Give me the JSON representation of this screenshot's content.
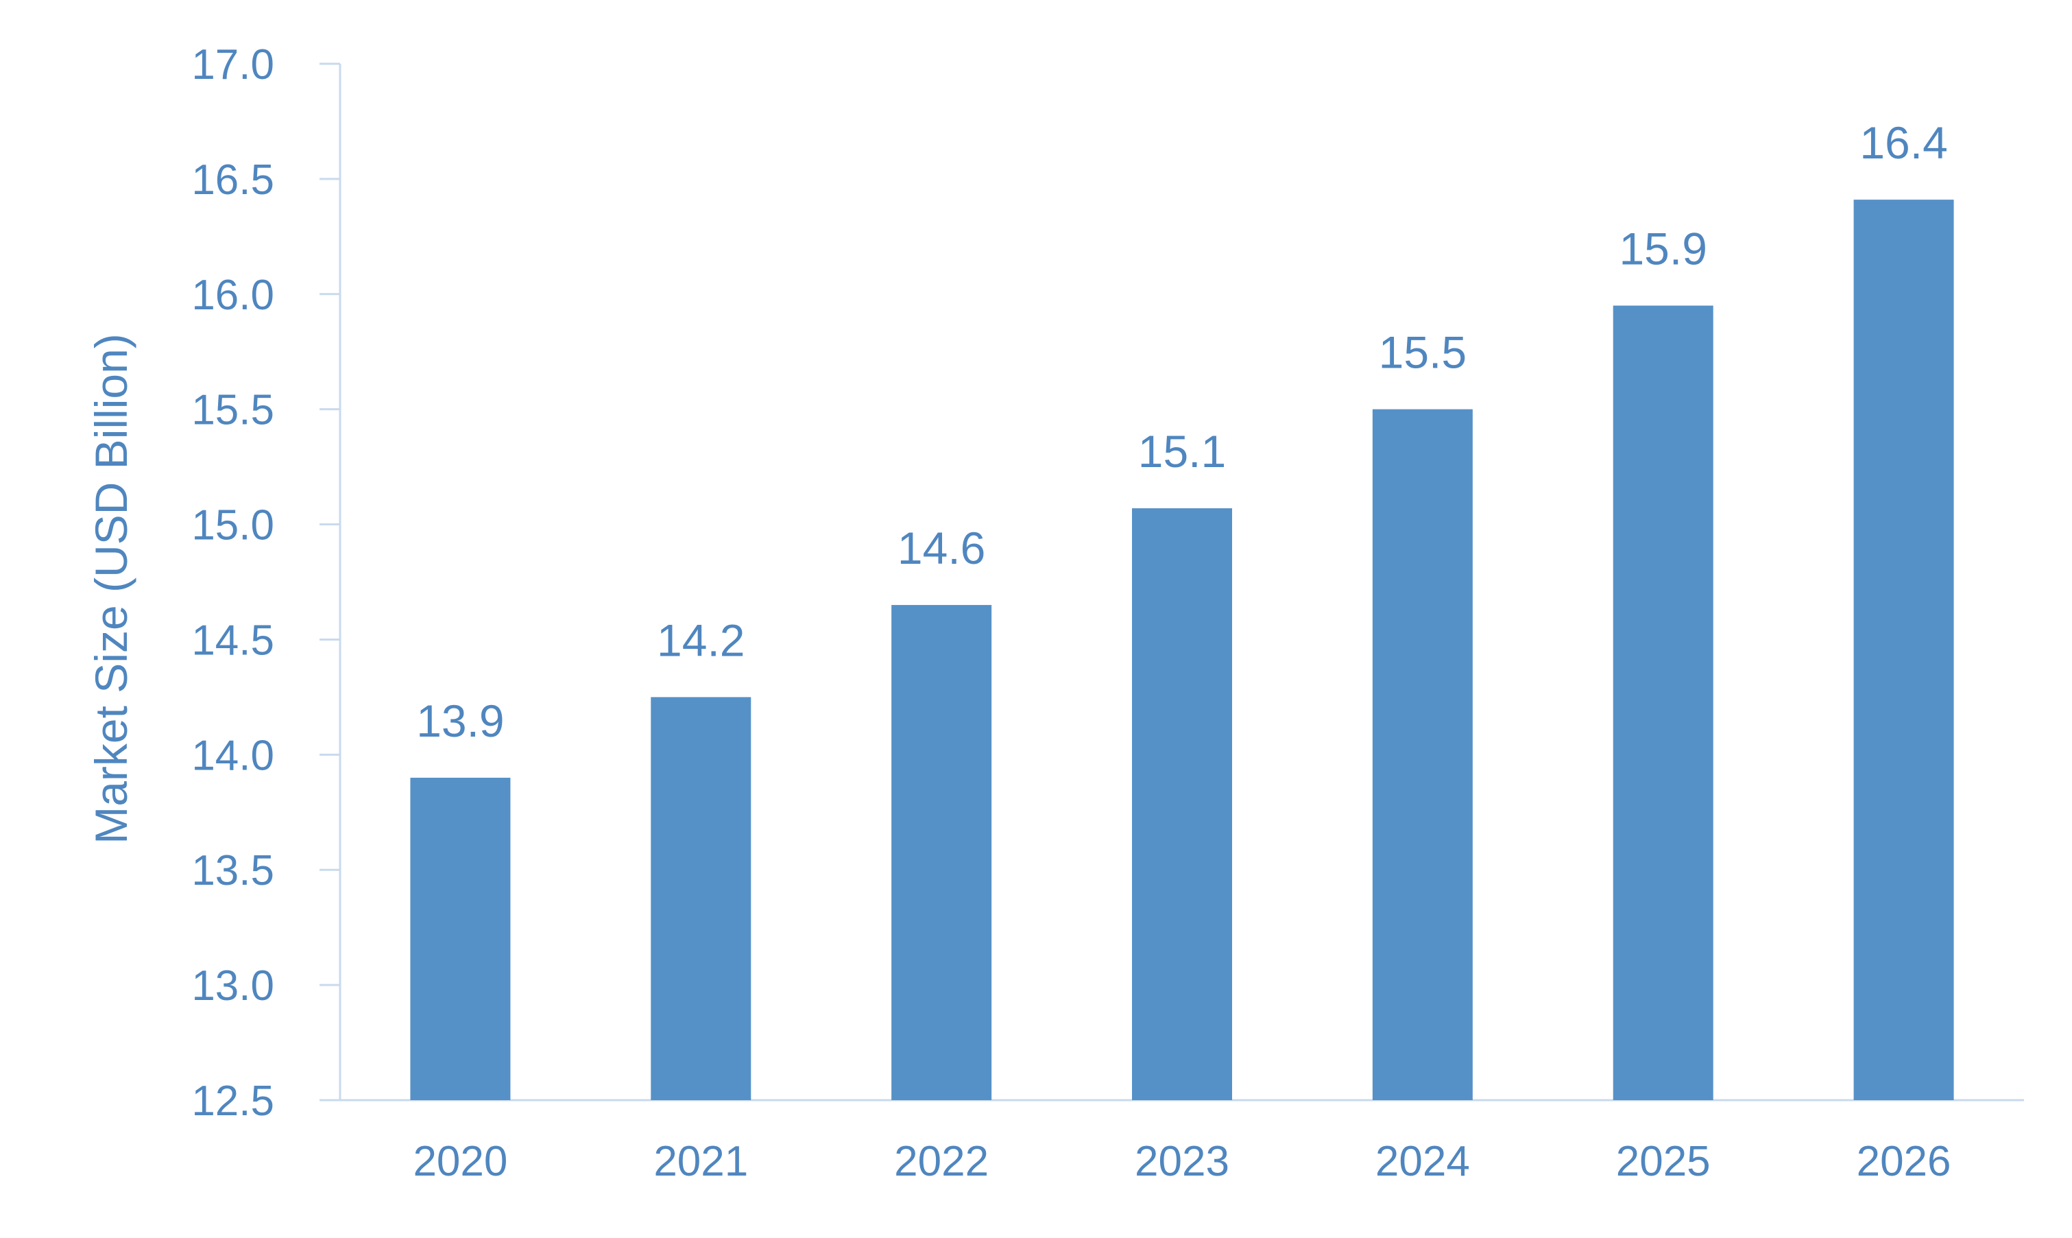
{
  "chart_data": {
    "type": "bar",
    "title": "",
    "xlabel": "",
    "ylabel": "Market Size (USD Billion)",
    "categories": [
      "2020",
      "2021",
      "2022",
      "2023",
      "2024",
      "2025",
      "2026"
    ],
    "values": [
      13.9,
      14.25,
      14.65,
      15.07,
      15.5,
      15.95,
      16.41
    ],
    "data_labels": [
      "13.9",
      "14.2",
      "14.6",
      "15.1",
      "15.5",
      "15.9",
      "16.4"
    ],
    "ylim": [
      12.5,
      17.0
    ],
    "yticks": [
      "12.5",
      "13.0",
      "13.5",
      "14.0",
      "14.5",
      "15.0",
      "15.5",
      "16.0",
      "16.5",
      "17.0"
    ],
    "grid": false,
    "legend": "none",
    "colors": {
      "bar": "#5591c7",
      "text": "#4f86bf",
      "axis": "#c9daee"
    }
  }
}
